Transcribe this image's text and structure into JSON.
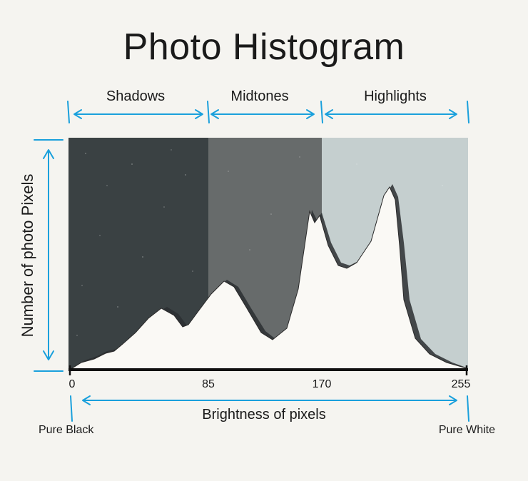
{
  "title": "Photo Histogram",
  "zones": [
    {
      "label": "Shadows",
      "from": 0,
      "to": 85,
      "color": "#3a4143"
    },
    {
      "label": "Midtones",
      "from": 85,
      "to": 170,
      "color": "#676b6b"
    },
    {
      "label": "Highlights",
      "from": 170,
      "to": 255,
      "color": "#c5cfcf"
    }
  ],
  "axis": {
    "x_label": "Brightness of pixels",
    "y_label": "Number of photo Pixels",
    "ticks": [
      "0",
      "85",
      "170",
      "255"
    ],
    "left_end_label": "Pure Black",
    "right_end_label": "Pure White",
    "arrow_color": "#1aa0dc"
  },
  "histogram_color": "#faf9f5"
}
